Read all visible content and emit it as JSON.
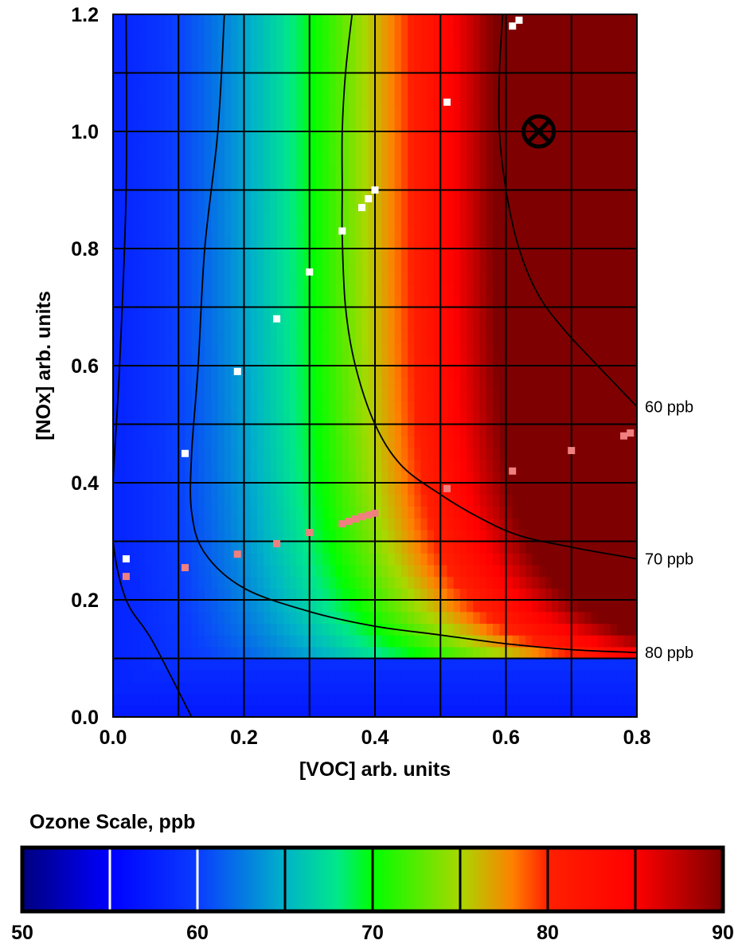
{
  "chart_data": {
    "type": "heatmap",
    "title": "",
    "xlabel": "[VOC] arb. units",
    "ylabel": "[NOx] arb. units",
    "xlim": [
      0.0,
      0.8
    ],
    "ylim": [
      0.0,
      1.2
    ],
    "x_ticks": [
      "0.0",
      "0.2",
      "0.4",
      "0.6",
      "0.8"
    ],
    "y_ticks": [
      "0.0",
      "0.2",
      "0.4",
      "0.6",
      "0.8",
      "1.0",
      "1.2"
    ],
    "x_tick_values": [
      0.0,
      0.2,
      0.4,
      0.6,
      0.8
    ],
    "y_tick_values": [
      0.0,
      0.2,
      0.4,
      0.6,
      0.8,
      1.0,
      1.2
    ],
    "grid": true,
    "grid_spacing": {
      "x": 0.1,
      "y": 0.1
    },
    "contours": [
      {
        "label": "60 ppb",
        "level": 60,
        "points": [
          [
            0.02,
            1.2
          ],
          [
            0.02,
            0.9
          ],
          [
            0.01,
            0.6
          ],
          [
            0.0,
            0.4
          ],
          [
            0.0,
            0.3
          ],
          [
            0.02,
            0.2
          ],
          [
            0.06,
            0.13
          ],
          [
            0.12,
            0.0
          ]
        ]
      },
      {
        "label": "70 ppb",
        "level": 70,
        "points": [
          [
            0.17,
            1.2
          ],
          [
            0.16,
            1.0
          ],
          [
            0.14,
            0.8
          ],
          [
            0.13,
            0.6
          ],
          [
            0.12,
            0.45
          ],
          [
            0.12,
            0.35
          ],
          [
            0.14,
            0.28
          ],
          [
            0.2,
            0.22
          ],
          [
            0.3,
            0.18
          ],
          [
            0.4,
            0.155
          ],
          [
            0.5,
            0.14
          ],
          [
            0.6,
            0.125
          ],
          [
            0.7,
            0.115
          ],
          [
            0.8,
            0.11
          ]
        ]
      },
      {
        "label": "80 ppb",
        "level": 80,
        "points": [
          [
            0.365,
            1.2
          ],
          [
            0.355,
            1.1
          ],
          [
            0.35,
            1.0
          ],
          [
            0.35,
            0.9
          ],
          [
            0.35,
            0.82
          ],
          [
            0.355,
            0.7
          ],
          [
            0.37,
            0.6
          ],
          [
            0.4,
            0.5
          ],
          [
            0.44,
            0.43
          ],
          [
            0.5,
            0.38
          ],
          [
            0.56,
            0.34
          ],
          [
            0.62,
            0.31
          ],
          [
            0.7,
            0.29
          ],
          [
            0.8,
            0.27
          ]
        ]
      },
      {
        "label": "",
        "level": 90,
        "points": [
          [
            0.595,
            1.2
          ],
          [
            0.59,
            1.1
          ],
          [
            0.59,
            1.0
          ],
          [
            0.6,
            0.9
          ],
          [
            0.62,
            0.8
          ],
          [
            0.65,
            0.72
          ],
          [
            0.69,
            0.66
          ],
          [
            0.74,
            0.6
          ],
          [
            0.8,
            0.53
          ]
        ]
      }
    ],
    "contour_label_values": [
      0.53,
      0.27,
      0.11
    ],
    "marker": {
      "symbol": "circled-x",
      "x": 0.65,
      "y": 1.0
    },
    "series": [
      {
        "color": "#ffffff",
        "points": [
          [
            0.02,
            0.27
          ],
          [
            0.11,
            0.45
          ],
          [
            0.19,
            0.59
          ],
          [
            0.25,
            0.68
          ],
          [
            0.3,
            0.76
          ],
          [
            0.35,
            0.83
          ],
          [
            0.38,
            0.87
          ],
          [
            0.39,
            0.885
          ],
          [
            0.4,
            0.9
          ],
          [
            0.51,
            1.05
          ],
          [
            0.61,
            1.18
          ],
          [
            0.62,
            1.19
          ]
        ]
      },
      {
        "color": "#f08080",
        "points": [
          [
            0.02,
            0.24
          ],
          [
            0.11,
            0.255
          ],
          [
            0.19,
            0.278
          ],
          [
            0.25,
            0.296
          ],
          [
            0.3,
            0.315
          ],
          [
            0.35,
            0.33
          ],
          [
            0.36,
            0.334
          ],
          [
            0.37,
            0.338
          ],
          [
            0.38,
            0.342
          ],
          [
            0.39,
            0.345
          ],
          [
            0.4,
            0.348
          ],
          [
            0.51,
            0.39
          ],
          [
            0.61,
            0.42
          ],
          [
            0.7,
            0.455
          ],
          [
            0.78,
            0.48
          ],
          [
            0.79,
            0.485
          ]
        ]
      }
    ],
    "colorbar": {
      "title": "Ozone Scale, ppb",
      "min": 50,
      "max": 90,
      "tick_labels": [
        "50",
        "60",
        "70",
        "80",
        "90"
      ],
      "tick_values": [
        50,
        60,
        70,
        80,
        90
      ],
      "dividers": [
        {
          "value": 55,
          "color": "#ffffff"
        },
        {
          "value": 60,
          "color": "#ffffff"
        },
        {
          "value": 65,
          "color": "#000000"
        },
        {
          "value": 70,
          "color": "#000000"
        },
        {
          "value": 75,
          "color": "#000000"
        },
        {
          "value": 80,
          "color": "#000000"
        },
        {
          "value": 85,
          "color": "#000000"
        }
      ],
      "color_stops": [
        {
          "value": 50,
          "color": "#00007f"
        },
        {
          "value": 55,
          "color": "#0000ff"
        },
        {
          "value": 60,
          "color": "#0a3cff"
        },
        {
          "value": 65,
          "color": "#00b3c8"
        },
        {
          "value": 68,
          "color": "#00e88a"
        },
        {
          "value": 70,
          "color": "#00ff00"
        },
        {
          "value": 75,
          "color": "#a8d800"
        },
        {
          "value": 78,
          "color": "#ff8000"
        },
        {
          "value": 80,
          "color": "#ff2000"
        },
        {
          "value": 85,
          "color": "#ff0000"
        },
        {
          "value": 90,
          "color": "#7f0000"
        }
      ]
    }
  }
}
